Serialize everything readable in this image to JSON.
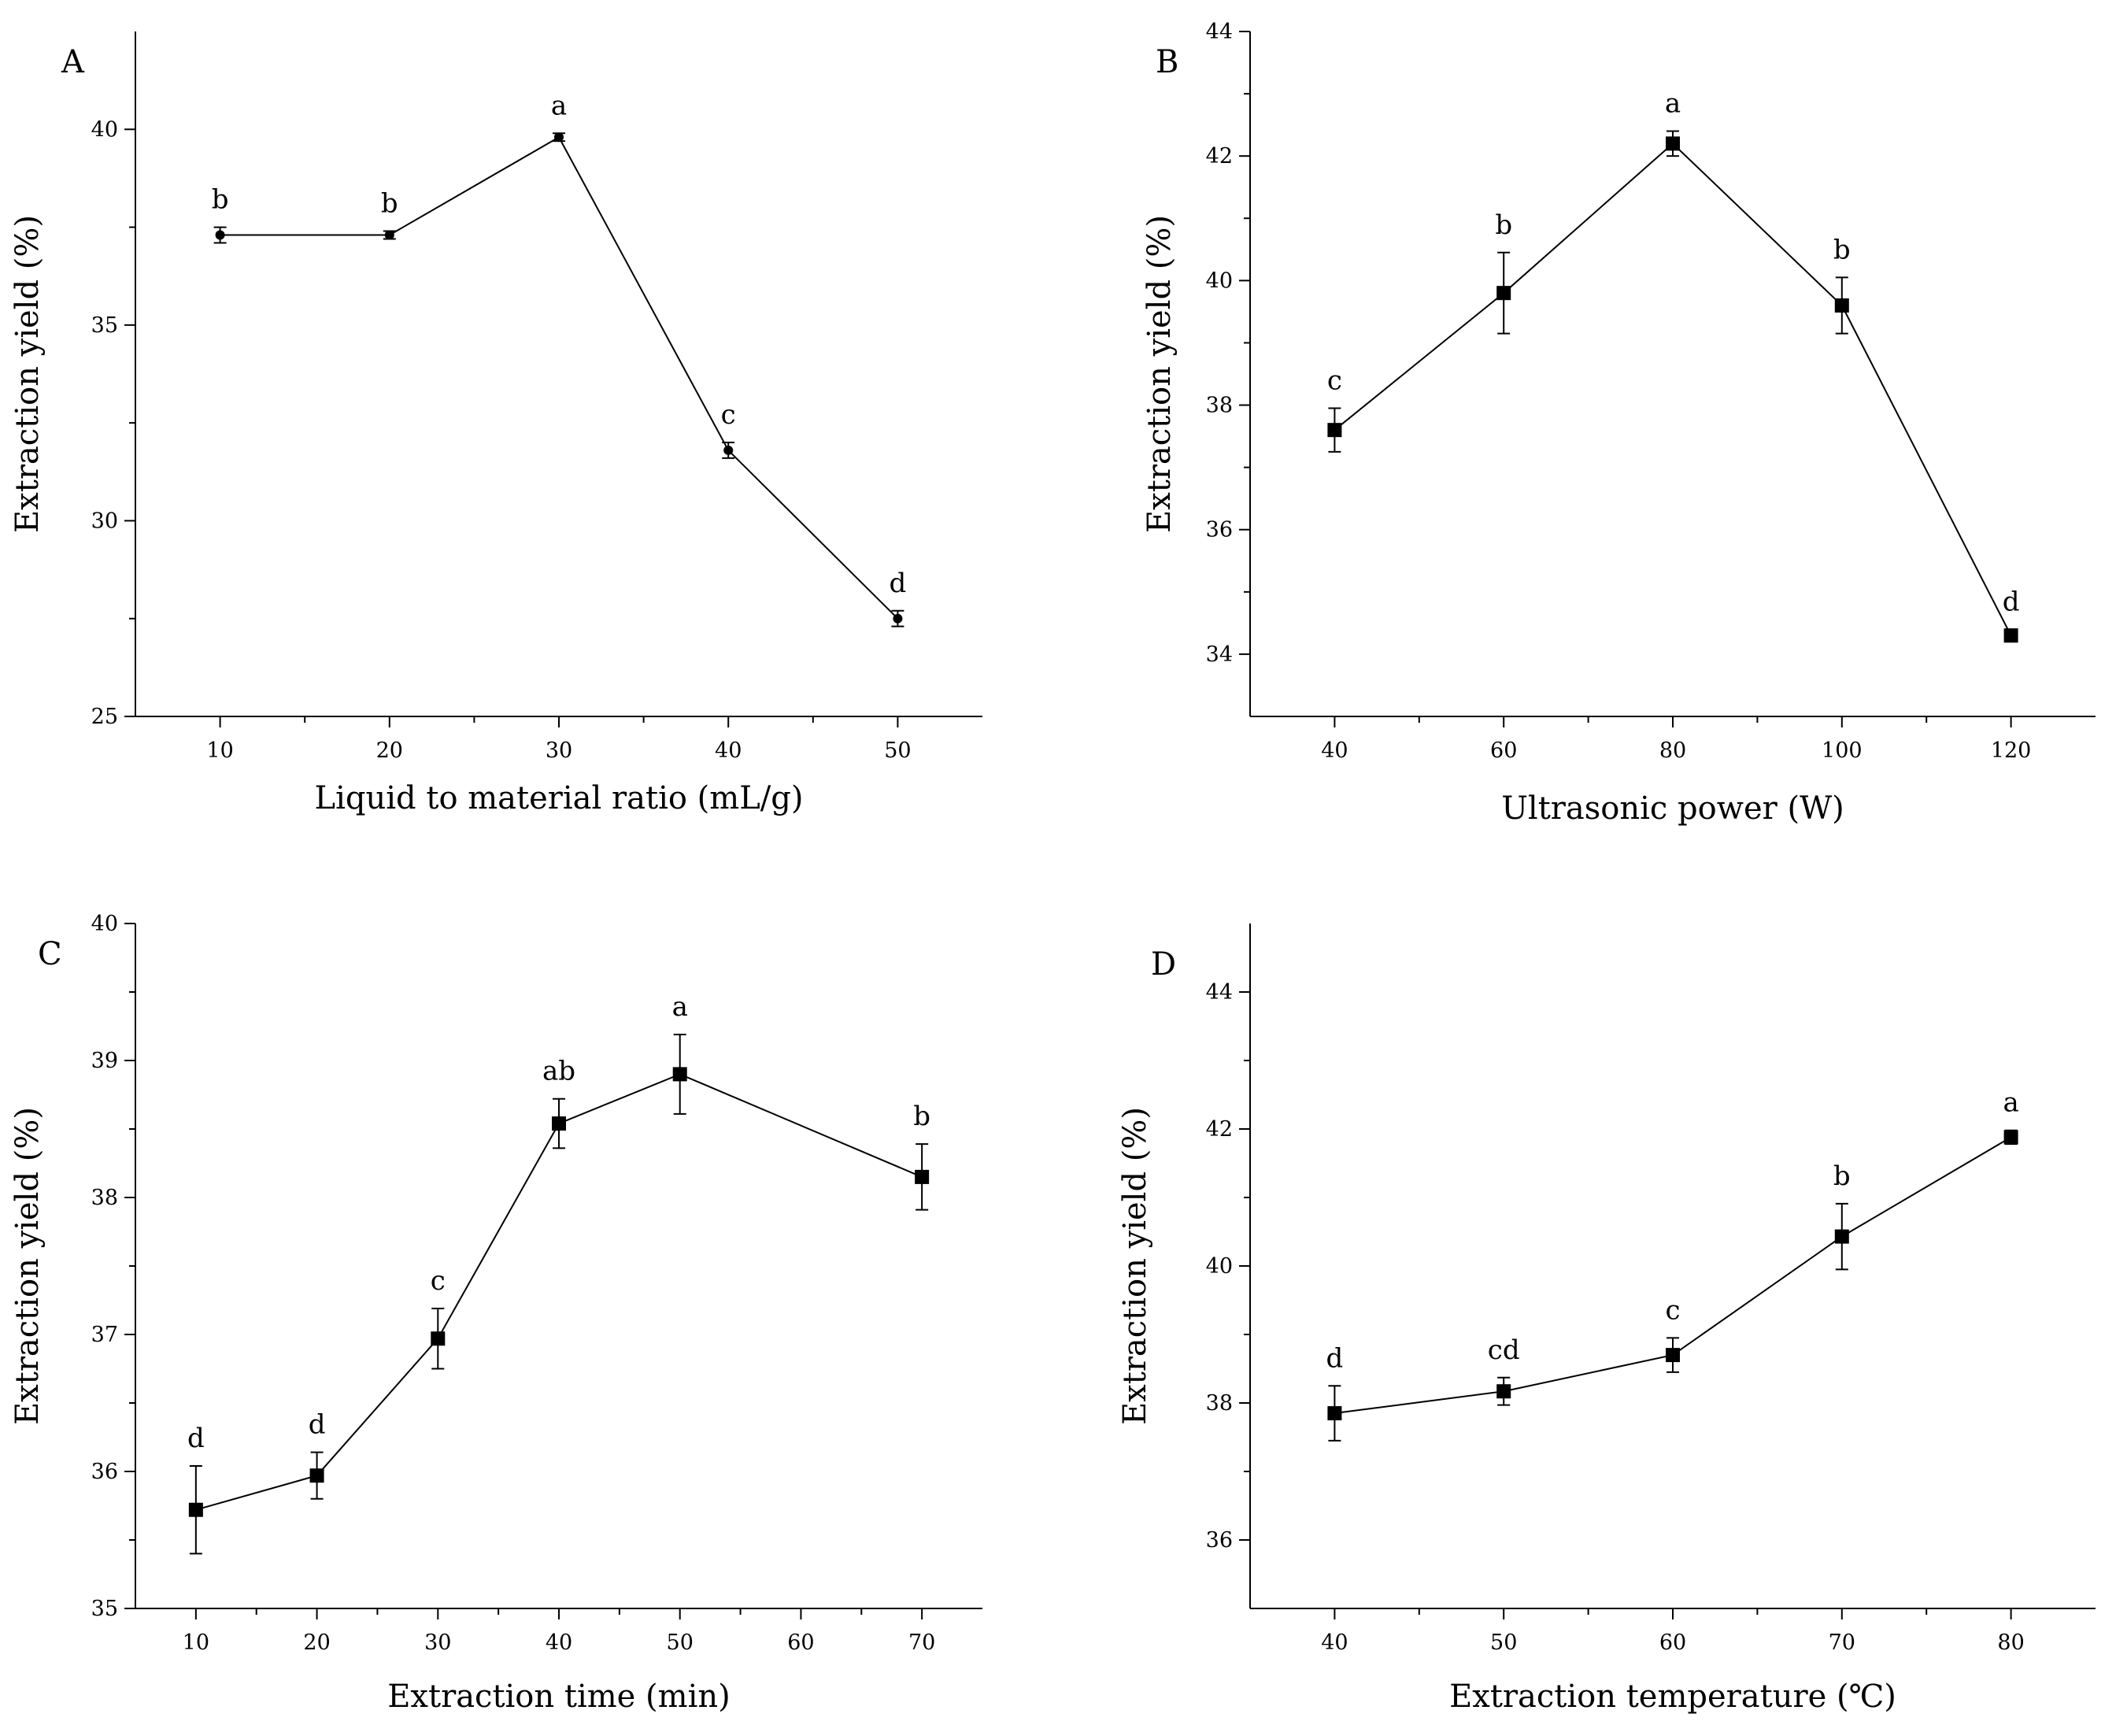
{
  "figure": {
    "ylabel_common": "Extraction yield (%)"
  },
  "chart_data": [
    {
      "id": "A",
      "type": "line",
      "panel_label": "A",
      "xlabel": "Liquid to material ratio (mL/g)",
      "ylabel": "Extraction yield (%)",
      "xlim": [
        5,
        55
      ],
      "ylim": [
        25,
        42.5
      ],
      "xticks": [
        10,
        20,
        30,
        40,
        50
      ],
      "yticks": [
        25,
        30,
        35,
        40
      ],
      "marker": "circle",
      "x": [
        10,
        20,
        30,
        40,
        50
      ],
      "y": [
        37.3,
        37.3,
        39.8,
        31.8,
        27.5
      ],
      "err": [
        0.2,
        0.1,
        0.1,
        0.2,
        0.2
      ],
      "sig": [
        "b",
        "b",
        "a",
        "c",
        "d"
      ],
      "color": "#000000"
    },
    {
      "id": "B",
      "type": "line",
      "panel_label": "B",
      "xlabel": "Ultrasonic power (W)",
      "ylabel": "Extraction yield (%)",
      "xlim": [
        30,
        130
      ],
      "ylim": [
        33,
        44
      ],
      "xticks": [
        40,
        60,
        80,
        100,
        120
      ],
      "yticks": [
        34,
        36,
        38,
        40,
        42,
        44
      ],
      "marker": "square",
      "x": [
        40,
        60,
        80,
        100,
        120
      ],
      "y": [
        37.6,
        39.8,
        42.2,
        39.6,
        34.3
      ],
      "err": [
        0.35,
        0.65,
        0.2,
        0.45,
        0.1
      ],
      "sig": [
        "c",
        "b",
        "a",
        "b",
        "d"
      ],
      "color": "#000000"
    },
    {
      "id": "C",
      "type": "line",
      "panel_label": "C",
      "xlabel": "Extraction time (min)",
      "ylabel": "Extraction yield (%)",
      "xlim": [
        5,
        75
      ],
      "ylim": [
        35,
        40
      ],
      "xticks": [
        10,
        20,
        30,
        40,
        50,
        60,
        70
      ],
      "yticks": [
        35,
        36,
        37,
        38,
        39,
        40
      ],
      "marker": "square",
      "x": [
        10,
        20,
        30,
        40,
        50,
        70
      ],
      "y": [
        35.72,
        35.97,
        36.97,
        38.54,
        38.9,
        38.15
      ],
      "err": [
        0.32,
        0.17,
        0.22,
        0.18,
        0.29,
        0.24
      ],
      "sig": [
        "d",
        "d",
        "c",
        "ab",
        "a",
        "b"
      ],
      "color": "#000000"
    },
    {
      "id": "D",
      "type": "line",
      "panel_label": "D",
      "xlabel": "Extraction temperature (℃)",
      "ylabel": "Extraction yield (%)",
      "xlim": [
        35,
        85
      ],
      "ylim": [
        35,
        45
      ],
      "xticks": [
        40,
        50,
        60,
        70,
        80
      ],
      "yticks": [
        36,
        38,
        40,
        42,
        44
      ],
      "marker": "square",
      "x": [
        40,
        50,
        60,
        70,
        80
      ],
      "y": [
        37.85,
        38.17,
        38.7,
        40.43,
        41.88
      ],
      "err": [
        0.4,
        0.2,
        0.25,
        0.48,
        0.1
      ],
      "sig": [
        "d",
        "cd",
        "c",
        "b",
        "a"
      ],
      "color": "#000000"
    }
  ]
}
